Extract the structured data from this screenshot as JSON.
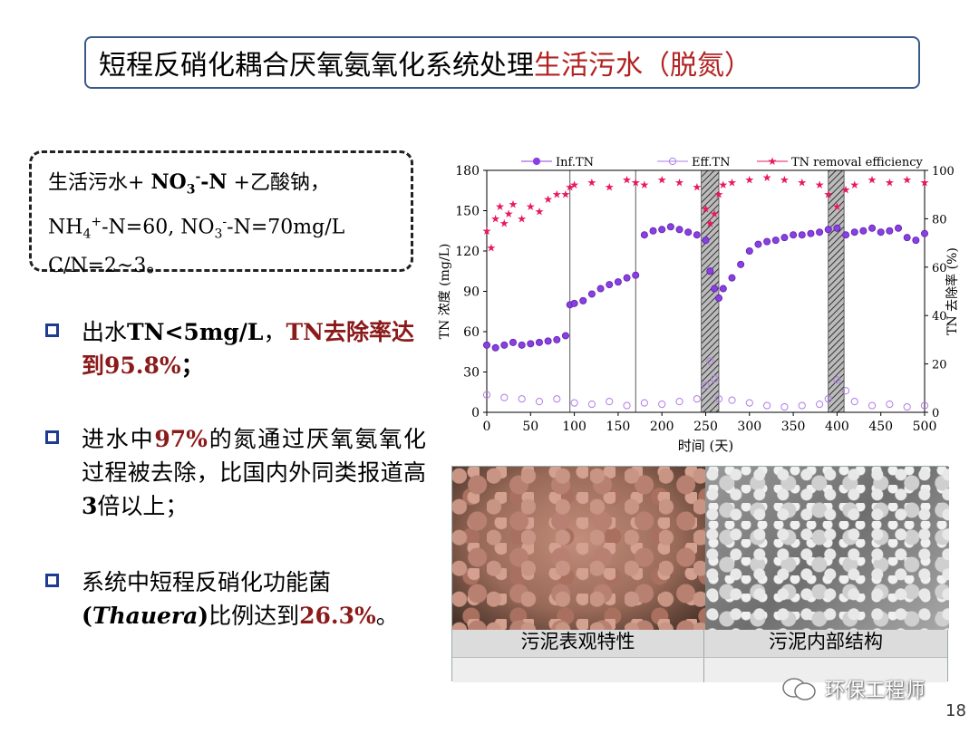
{
  "title": {
    "part1": "短程反硝化耦合厌氧氨氧化系统处理",
    "part2": "生活污水（脱氮）"
  },
  "info": {
    "line1_a": "生活污水+ ",
    "line1_b": "NO",
    "line1_sub": "3",
    "line1_sup": "-",
    "line1_c": "-N",
    "line1_d": " +乙酸钠，",
    "line2_a": "NH",
    "line2_sub1": "4",
    "line2_sup1": "+",
    "line2_b": "-N=60, NO",
    "line2_sub2": "3",
    "line2_sup2": "-",
    "line2_c": "-N=70mg/L",
    "line3": "C/N=2~3。"
  },
  "bullets": [
    {
      "a": "出水",
      "b": "TN<5mg/L",
      "c": "，",
      "d": "TN去除率达到95.8%",
      "e": "；"
    },
    {
      "a": "进水中",
      "b": "97%",
      "c": "的氮通过厌氧氨氧化过程被去除，比国内外同类报道高",
      "d": "3",
      "e": "倍以上；"
    },
    {
      "a": "系统中短程反硝化功能菌",
      "b": "(",
      "c": "Thauera",
      "d": ")",
      "e": "比例达到",
      "f": "26.3%",
      "g": "。"
    }
  ],
  "chart_data": {
    "type": "scatter",
    "xlabel": "时间 (天)",
    "ylabel_left": "TN 浓度 (mg/L)",
    "ylabel_right": "TN 去除率 (%)",
    "xlim": [
      0,
      500
    ],
    "ylim_left": [
      0,
      180
    ],
    "ylim_right": [
      0,
      100
    ],
    "x_ticks": [
      "0",
      "50",
      "100",
      "150",
      "200",
      "250",
      "300",
      "350",
      "400",
      "450",
      "500"
    ],
    "y_ticks_left": [
      "0",
      "30",
      "60",
      "90",
      "120",
      "150",
      "180"
    ],
    "y_ticks_right": [
      "0",
      "20",
      "40",
      "60",
      "80",
      "100"
    ],
    "legend": [
      "Inf.TN",
      "Eff.TN",
      "TN removal efficiency"
    ],
    "legend_position": "top",
    "phase_lines_x": [
      95,
      170
    ],
    "hatched_ranges": [
      [
        245,
        265
      ],
      [
        390,
        408
      ]
    ],
    "series": [
      {
        "name": "Inf.TN",
        "x": [
          0,
          10,
          20,
          30,
          40,
          50,
          60,
          70,
          80,
          90,
          95,
          100,
          110,
          120,
          130,
          140,
          150,
          160,
          170,
          180,
          190,
          200,
          210,
          220,
          230,
          240,
          250,
          255,
          260,
          265,
          270,
          280,
          290,
          300,
          310,
          320,
          330,
          340,
          350,
          360,
          370,
          380,
          390,
          400,
          410,
          420,
          430,
          440,
          450,
          460,
          470,
          480,
          490,
          500
        ],
        "values": [
          50,
          48,
          50,
          52,
          50,
          51,
          52,
          53,
          54,
          57,
          80,
          81,
          83,
          88,
          92,
          95,
          97,
          100,
          102,
          132,
          135,
          136,
          138,
          136,
          134,
          132,
          128,
          105,
          92,
          85,
          92,
          100,
          110,
          120,
          125,
          127,
          128,
          130,
          132,
          132,
          133,
          134,
          136,
          137,
          132,
          134,
          135,
          137,
          134,
          135,
          137,
          130,
          128,
          133
        ]
      },
      {
        "name": "Eff.TN",
        "x": [
          0,
          20,
          40,
          60,
          80,
          100,
          120,
          140,
          160,
          180,
          200,
          220,
          240,
          250,
          255,
          260,
          265,
          280,
          300,
          320,
          340,
          360,
          380,
          390,
          400,
          410,
          420,
          440,
          460,
          480,
          500
        ],
        "values": [
          13,
          11,
          10,
          8,
          10,
          7,
          6,
          8,
          5,
          7,
          6,
          8,
          10,
          20,
          38,
          25,
          10,
          9,
          7,
          5,
          4,
          5,
          6,
          10,
          24,
          16,
          8,
          5,
          6,
          4,
          5
        ]
      },
      {
        "name": "TN removal efficiency",
        "x": [
          0,
          5,
          10,
          15,
          20,
          25,
          30,
          40,
          50,
          60,
          70,
          80,
          90,
          95,
          100,
          120,
          140,
          160,
          170,
          180,
          200,
          220,
          240,
          250,
          255,
          260,
          265,
          270,
          280,
          300,
          320,
          340,
          360,
          380,
          390,
          400,
          410,
          420,
          440,
          460,
          480,
          500
        ],
        "values": [
          75,
          68,
          80,
          85,
          78,
          82,
          86,
          80,
          85,
          83,
          88,
          90,
          90,
          93,
          94,
          95,
          93,
          96,
          95,
          94,
          96,
          95,
          93,
          84,
          78,
          82,
          90,
          94,
          95,
          96,
          97,
          96,
          95,
          94,
          90,
          85,
          92,
          94,
          96,
          95,
          96,
          95
        ]
      }
    ]
  },
  "photos": {
    "left_caption": "污泥表观特性",
    "right_caption": "污泥内部结构"
  },
  "watermark": "环保工程师",
  "page_number": "18"
}
